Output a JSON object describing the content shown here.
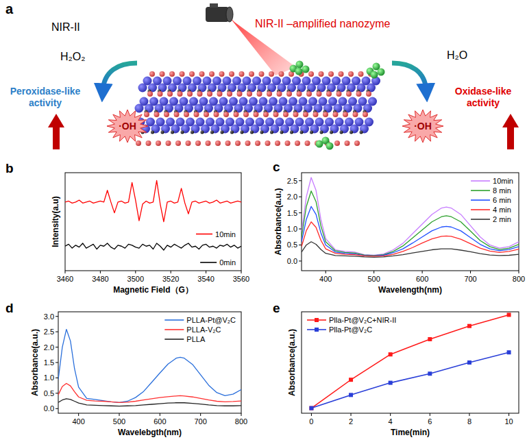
{
  "diagram": {
    "label": "a",
    "title": "NIR-II –amplified nanozyme",
    "left": {
      "light": "NIR-II",
      "substrate": "H₂O₂",
      "product": "·OH",
      "activity": "Peroxidase-like activity"
    },
    "right": {
      "substrate": "H₂O",
      "product": "·OH",
      "activity": "Oxidase-like activity"
    }
  },
  "chart_data": [
    {
      "panel": "b",
      "type": "line",
      "x_label": "Magnetic Field（G）",
      "y_label": "Intensity(a.u)",
      "x": [
        3460,
        3462,
        3464,
        3466,
        3468,
        3470,
        3472,
        3474,
        3476,
        3478,
        3480,
        3482,
        3484,
        3486,
        3488,
        3490,
        3492,
        3494,
        3496,
        3498,
        3500,
        3502,
        3504,
        3506,
        3508,
        3510,
        3512,
        3514,
        3516,
        3518,
        3520,
        3522,
        3524,
        3526,
        3528,
        3530,
        3532,
        3534,
        3536,
        3538,
        3540,
        3542,
        3544,
        3546,
        3548,
        3550,
        3552,
        3554,
        3556,
        3558,
        3560
      ],
      "xlim": [
        3460,
        3560
      ],
      "xticks": [
        3460,
        3480,
        3500,
        3520,
        3540,
        3560
      ],
      "ylim": [
        0,
        10
      ],
      "tick_labels": "x",
      "legend": "right",
      "series": [
        {
          "name": "10min",
          "color": "#ff0000",
          "values": [
            7.0,
            7.1,
            6.9,
            7.0,
            7.2,
            6.9,
            7.0,
            7.1,
            6.9,
            7.0,
            7.1,
            7.0,
            8.2,
            7.0,
            5.9,
            7.0,
            7.1,
            6.9,
            7.0,
            9.0,
            7.2,
            5.1,
            6.8,
            7.1,
            6.9,
            7.0,
            9.2,
            6.8,
            5.0,
            7.0,
            7.1,
            6.9,
            7.0,
            8.4,
            6.9,
            5.8,
            7.0,
            7.1,
            6.9,
            7.0,
            7.1,
            6.9,
            7.0,
            7.2,
            6.9,
            7.0,
            7.1,
            6.9,
            7.0,
            7.1,
            7.0
          ]
        },
        {
          "name": "0min",
          "color": "#000000",
          "values": [
            2.5,
            2.7,
            2.3,
            2.6,
            2.4,
            2.8,
            2.3,
            2.5,
            2.7,
            2.2,
            2.6,
            2.5,
            2.8,
            2.4,
            2.2,
            2.6,
            2.5,
            2.3,
            2.7,
            2.6,
            2.4,
            2.3,
            2.7,
            2.5,
            2.6,
            2.2,
            2.8,
            2.5,
            2.1,
            2.6,
            2.4,
            2.7,
            2.5,
            2.3,
            2.6,
            2.8,
            2.4,
            2.5,
            2.2,
            2.6,
            2.7,
            2.4,
            2.5,
            2.3,
            2.6,
            2.5,
            2.7,
            2.4,
            2.6,
            2.3,
            2.5
          ]
        }
      ]
    },
    {
      "panel": "c",
      "type": "line",
      "x_label": "Wavelength(nm)",
      "y_label": "Absorbance(a.u.)",
      "x": [
        350,
        360,
        370,
        380,
        390,
        400,
        420,
        440,
        460,
        480,
        500,
        520,
        540,
        560,
        580,
        600,
        620,
        640,
        650,
        660,
        680,
        700,
        720,
        740,
        760,
        780,
        800
      ],
      "xlim": [
        350,
        800
      ],
      "xticks": [
        400,
        500,
        600,
        700,
        800
      ],
      "ylim": [
        -0.3,
        2.75
      ],
      "yticks": [
        {
          "value": 0,
          "label": "0.0"
        },
        {
          "value": 0.5,
          "label": "0.5"
        },
        {
          "value": 1,
          "label": "1.0"
        },
        {
          "value": 1.5,
          "label": "1.5"
        },
        {
          "value": 2,
          "label": "2.0"
        },
        {
          "value": 2.5,
          "label": "2.5"
        }
      ],
      "legend": "top-right",
      "series": [
        {
          "name": "10min",
          "color": "#c77dff",
          "values": [
            0.9,
            2.0,
            2.6,
            2.2,
            1.3,
            0.7,
            0.35,
            0.3,
            0.28,
            0.2,
            0.18,
            0.22,
            0.35,
            0.55,
            0.85,
            1.15,
            1.45,
            1.65,
            1.68,
            1.65,
            1.45,
            1.1,
            0.75,
            0.5,
            0.4,
            0.45,
            0.6
          ]
        },
        {
          "name": "8 min",
          "color": "#2ca02c",
          "values": [
            0.75,
            1.7,
            2.18,
            1.85,
            1.1,
            0.6,
            0.32,
            0.27,
            0.25,
            0.19,
            0.17,
            0.2,
            0.3,
            0.47,
            0.72,
            0.97,
            1.22,
            1.38,
            1.41,
            1.38,
            1.22,
            0.93,
            0.64,
            0.45,
            0.36,
            0.4,
            0.52
          ]
        },
        {
          "name": "6 min",
          "color": "#1f4fff",
          "values": [
            0.6,
            1.3,
            1.7,
            1.45,
            0.88,
            0.5,
            0.28,
            0.24,
            0.22,
            0.17,
            0.16,
            0.18,
            0.26,
            0.38,
            0.56,
            0.75,
            0.94,
            1.06,
            1.08,
            1.06,
            0.94,
            0.73,
            0.52,
            0.38,
            0.32,
            0.36,
            0.45
          ]
        },
        {
          "name": "4 min",
          "color": "#ff2a2a",
          "values": [
            0.45,
            0.95,
            1.22,
            1.05,
            0.65,
            0.38,
            0.24,
            0.21,
            0.2,
            0.16,
            0.15,
            0.16,
            0.21,
            0.3,
            0.42,
            0.56,
            0.69,
            0.77,
            0.78,
            0.77,
            0.68,
            0.54,
            0.4,
            0.31,
            0.27,
            0.3,
            0.37
          ]
        },
        {
          "name": "2 min",
          "color": "#333333",
          "values": [
            0.28,
            0.5,
            0.6,
            0.52,
            0.36,
            0.24,
            0.17,
            0.16,
            0.15,
            0.13,
            0.12,
            0.13,
            0.16,
            0.2,
            0.25,
            0.3,
            0.35,
            0.38,
            0.38,
            0.38,
            0.34,
            0.29,
            0.23,
            0.19,
            0.17,
            0.18,
            0.21
          ]
        }
      ]
    },
    {
      "panel": "d",
      "type": "line",
      "x_label": "Wavelebgth(nm)",
      "y_label": "Absorbance(a.u.)",
      "x": [
        350,
        360,
        370,
        380,
        390,
        400,
        420,
        440,
        460,
        480,
        500,
        520,
        540,
        560,
        580,
        600,
        620,
        640,
        650,
        660,
        680,
        700,
        720,
        740,
        760,
        780,
        800
      ],
      "xlim": [
        350,
        800
      ],
      "xticks": [
        400,
        500,
        600,
        700,
        800
      ],
      "ylim": [
        -0.15,
        3.15
      ],
      "yticks": [
        {
          "value": 0,
          "label": "0.0"
        },
        {
          "value": 0.5,
          "label": "0.5"
        },
        {
          "value": 1,
          "label": "1.0"
        },
        {
          "value": 1.5,
          "label": "1.5"
        },
        {
          "value": 2,
          "label": "2.0"
        },
        {
          "value": 2.5,
          "label": "2.5"
        },
        {
          "value": 3,
          "label": "3.0"
        }
      ],
      "legend": "top-right",
      "series": [
        {
          "name": "PLLA-Pt@V₂C",
          "color": "#2a6fdb",
          "values": [
            0.95,
            2.0,
            2.58,
            2.2,
            1.3,
            0.7,
            0.33,
            0.3,
            0.26,
            0.22,
            0.2,
            0.24,
            0.36,
            0.56,
            0.86,
            1.16,
            1.45,
            1.64,
            1.67,
            1.64,
            1.44,
            1.1,
            0.76,
            0.52,
            0.42,
            0.47,
            0.62
          ]
        },
        {
          "name": "PLLA-V₂C",
          "color": "#ff3030",
          "values": [
            0.45,
            0.72,
            0.82,
            0.74,
            0.55,
            0.38,
            0.27,
            0.25,
            0.24,
            0.22,
            0.2,
            0.21,
            0.24,
            0.28,
            0.32,
            0.36,
            0.39,
            0.41,
            0.42,
            0.41,
            0.38,
            0.33,
            0.28,
            0.24,
            0.22,
            0.23,
            0.25
          ]
        },
        {
          "name": "PLLA",
          "color": "#222222",
          "values": [
            0.2,
            0.28,
            0.32,
            0.3,
            0.24,
            0.18,
            0.12,
            0.11,
            0.1,
            0.09,
            0.08,
            0.09,
            0.1,
            0.12,
            0.14,
            0.16,
            0.18,
            0.19,
            0.19,
            0.19,
            0.17,
            0.15,
            0.12,
            0.1,
            0.09,
            0.09,
            0.1
          ]
        }
      ]
    },
    {
      "panel": "e",
      "type": "line",
      "marker": "square",
      "x_label": "Time(min)",
      "y_label": "Absorbance(a.u.)",
      "x": [
        0,
        2,
        4,
        6,
        8,
        10
      ],
      "xlim": [
        -0.5,
        10.5
      ],
      "xticks": [
        0,
        2,
        4,
        6,
        8,
        10
      ],
      "ylim": [
        0,
        1
      ],
      "tick_labels": "x",
      "legend": "top-left",
      "series": [
        {
          "name": "Plla-Pt@V₂C+NIR-II",
          "color": "#ff1a1a",
          "values": [
            0.05,
            0.33,
            0.58,
            0.73,
            0.86,
            0.97
          ]
        },
        {
          "name": "Plla-Pt@V₂C",
          "color": "#2a3fd8",
          "values": [
            0.05,
            0.18,
            0.3,
            0.39,
            0.5,
            0.6
          ]
        }
      ]
    }
  ]
}
